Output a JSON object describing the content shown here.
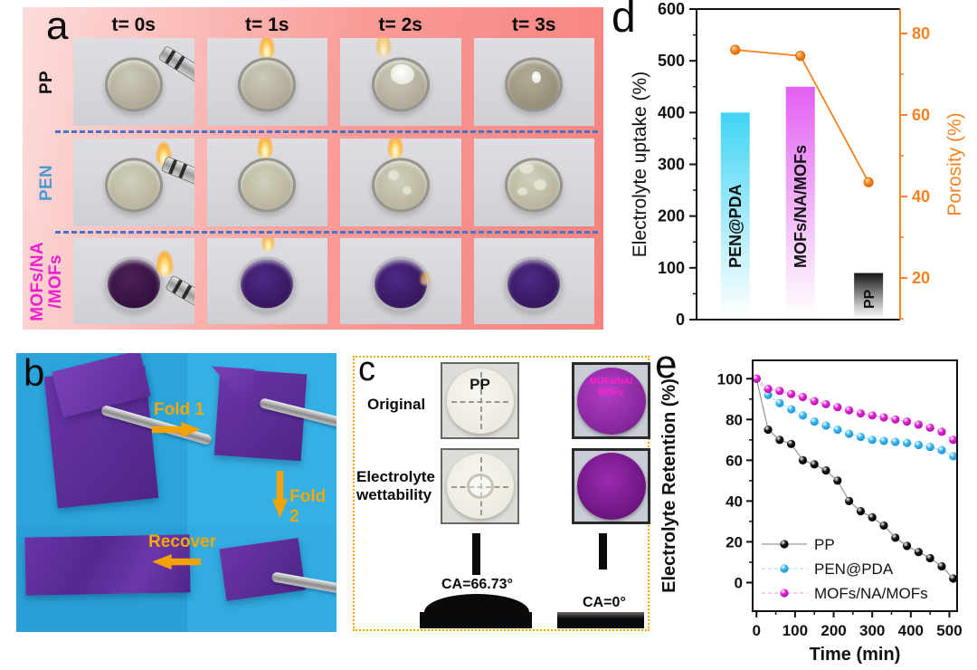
{
  "panel_a": {
    "label": "a",
    "time_labels": [
      "t= 0s",
      "t= 1s",
      "t= 2s",
      "t= 3s"
    ],
    "rows": [
      {
        "label": "PP",
        "color": "#111111"
      },
      {
        "label": "PEN",
        "color": "#4a9ad4"
      },
      {
        "label": "MOFs/NA\n/MOFs",
        "color": "#f01fd0"
      }
    ]
  },
  "panel_b": {
    "label": "b",
    "fold1": "Fold 1",
    "fold2": "Fold 2",
    "recover": "Recover",
    "arrow_color": "#f2a202"
  },
  "panel_c": {
    "label": "c",
    "row1": "Original",
    "row2": "Electrolyte wettability",
    "pp_disc": "PP",
    "mofs_disc": "MOFs/NA/\nMOFs",
    "ca_pp": "CA=66.73°",
    "ca_mofs": "CA=0°",
    "border_color": "#f5a800"
  },
  "panel_d": {
    "label": "d"
  },
  "panel_e": {
    "label": "e"
  },
  "chart_data": [
    {
      "panel": "d",
      "type": "bar",
      "categories": [
        "PEN@PDA",
        "MOFs/NA/MOFs",
        "PP"
      ],
      "bars": {
        "name": "Electrolyte uptake (%)",
        "values": [
          400,
          450,
          90
        ],
        "colors": [
          "#3fd4f4",
          "#e25ff2",
          "#151515"
        ]
      },
      "line": {
        "name": "Porosity (%)",
        "values": [
          76,
          74.5,
          43.5
        ],
        "color": "#f58220"
      },
      "left_axis": {
        "label": "Electrolyte uptake (%)",
        "range": [
          0,
          600
        ],
        "major_ticks": [
          0,
          100,
          200,
          300,
          400,
          500,
          600
        ],
        "minor_step": 50
      },
      "right_axis": {
        "label": "Porosity (%)",
        "range": [
          9.8,
          86
        ],
        "major_ticks": [
          20,
          40,
          60,
          80
        ],
        "minor_step": 10,
        "color": "#f58220"
      },
      "legend_position": "none",
      "grid": false
    },
    {
      "panel": "e",
      "type": "scatter",
      "xlabel": "Time (min)",
      "ylabel": "Electrolyte Retention (%)",
      "x": [
        0,
        30,
        60,
        90,
        120,
        150,
        180,
        210,
        240,
        270,
        300,
        330,
        360,
        390,
        420,
        450,
        480,
        510
      ],
      "series": [
        {
          "name": "PP",
          "marker_color": "#111111",
          "marker_dark": "#000000",
          "line_color": "#9a9a9a",
          "dashed": false,
          "values": [
            100,
            75,
            70,
            68,
            60,
            58,
            55,
            50,
            40,
            35,
            32,
            28,
            22,
            18,
            15,
            12,
            8,
            2
          ]
        },
        {
          "name": "PEN@PDA",
          "marker_color": "#38b6f0",
          "marker_dark": "#1586c0",
          "line_color": "#b0e0f8",
          "dashed": true,
          "values": [
            100,
            92,
            88,
            85,
            82,
            79,
            77,
            75,
            73,
            71.5,
            70,
            69.5,
            69,
            68.5,
            67.5,
            66.5,
            65,
            62
          ]
        },
        {
          "name": "MOFs/NA/MOFs",
          "marker_color": "#e01fd5",
          "marker_dark": "#a01098",
          "line_color": "#f0a8ec",
          "dashed": true,
          "values": [
            100,
            95,
            94,
            92.5,
            91,
            89,
            87.5,
            86,
            84.5,
            83,
            82,
            81,
            80,
            79,
            77.5,
            76,
            74,
            70
          ]
        }
      ],
      "x_axis": {
        "range": [
          -10,
          520
        ],
        "major_ticks": [
          0,
          100,
          200,
          300,
          400,
          500
        ],
        "minor_step": 50
      },
      "y_axis": {
        "range": [
          -14,
          109
        ],
        "major_ticks": [
          0,
          20,
          40,
          60,
          80,
          100
        ],
        "minor_step": 10
      },
      "legend_position": "lower-left",
      "grid": false
    }
  ]
}
